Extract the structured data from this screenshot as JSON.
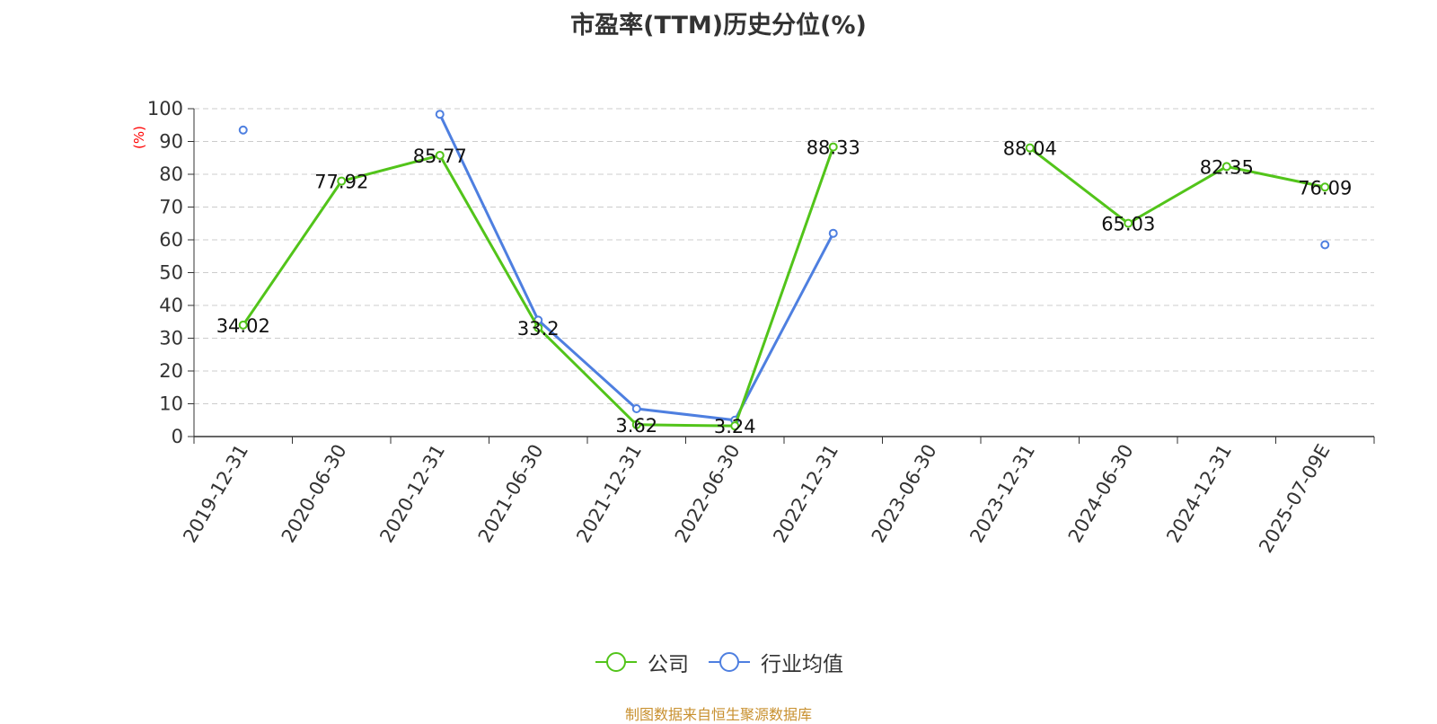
{
  "chart_data": {
    "type": "line",
    "title": "市盈率(TTM)历史分位(%)",
    "ylabel": "(%)",
    "ylim": [
      0,
      100
    ],
    "yticks": [
      "0",
      "10",
      "20",
      "30",
      "40",
      "50",
      "60",
      "70",
      "80",
      "90",
      "100"
    ],
    "categories": [
      "2019-12-31",
      "2020-06-30",
      "2020-12-31",
      "2021-06-30",
      "2021-12-31",
      "2022-06-30",
      "2022-12-31",
      "2023-06-30",
      "2023-12-31",
      "2024-06-30",
      "2024-12-31",
      "2025-07-09E"
    ],
    "series": [
      {
        "name": "公司",
        "color": "#52c41a",
        "values": [
          34.02,
          77.92,
          85.77,
          33.2,
          3.62,
          3.24,
          88.33,
          null,
          88.04,
          65.03,
          82.35,
          76.09
        ],
        "labels": [
          "34.02",
          "77.92",
          "85.77",
          "33.2",
          "3.62",
          "3.24",
          "88.33",
          "",
          "88.04",
          "65.03",
          "82.35",
          "76.09"
        ]
      },
      {
        "name": "行业均值",
        "color": "#4e7fe0",
        "values": [
          93.5,
          null,
          98.3,
          35.5,
          8.5,
          5.0,
          62.0,
          null,
          null,
          null,
          null,
          58.5
        ]
      }
    ],
    "grid": true,
    "legend_position": "bottom-center"
  },
  "footer": {
    "source": "制图数据来自恒生聚源数据库"
  }
}
